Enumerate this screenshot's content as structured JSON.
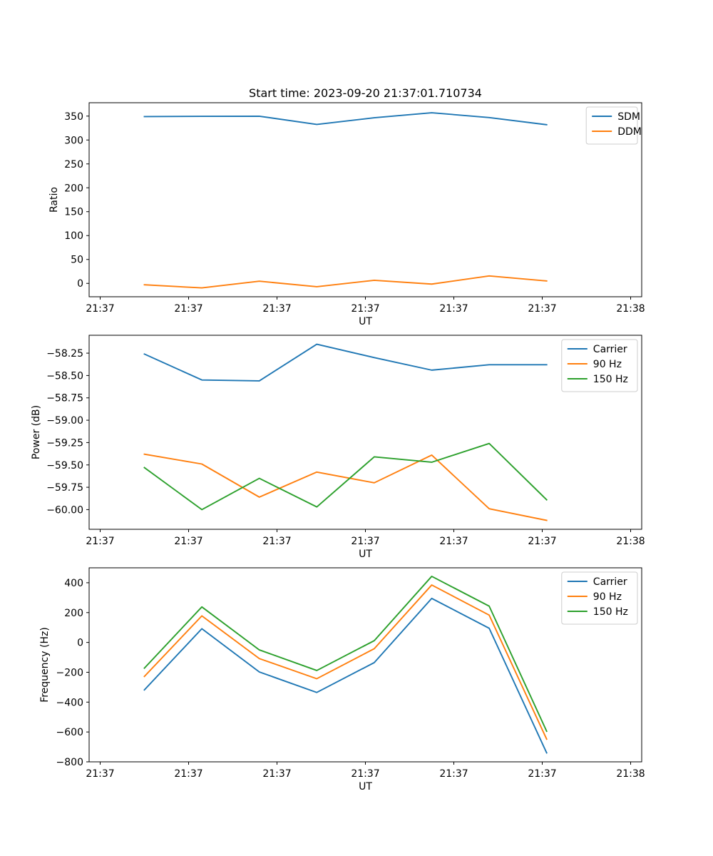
{
  "figure": {
    "title": "Start time: 2023-09-20 21:37:01.710734"
  },
  "chart_data": [
    {
      "type": "line",
      "title": "Start time: 2023-09-20 21:37:01.710734",
      "xlabel": "UT",
      "ylabel": "Ratio",
      "x": [
        0.5,
        1.15,
        1.8,
        2.45,
        3.1,
        3.75,
        4.4,
        5.05
      ],
      "xlim": [
        0,
        6
      ],
      "x_ticks": [
        0,
        1,
        2,
        3,
        4,
        5,
        6
      ],
      "x_tick_labels": [
        "21:37",
        "21:37",
        "21:37",
        "21:37",
        "21:37",
        "21:37",
        "21:38"
      ],
      "ylim": [
        -28,
        378
      ],
      "y_ticks": [
        0,
        50,
        100,
        150,
        200,
        250,
        300,
        350
      ],
      "y_tick_labels": [
        "0",
        "50",
        "100",
        "150",
        "200",
        "250",
        "300",
        "350"
      ],
      "legend_position": "top-right",
      "series": [
        {
          "name": "SDM",
          "color": "#1f77b4",
          "values": [
            349,
            349.5,
            349.8,
            332.5,
            346.5,
            357,
            347,
            332
          ]
        },
        {
          "name": "DDM",
          "color": "#ff7f0e",
          "values": [
            -3,
            -9.5,
            4.5,
            -7,
            6.5,
            -1.5,
            15.5,
            5
          ]
        }
      ]
    },
    {
      "type": "line",
      "title": "",
      "xlabel": "UT",
      "ylabel": "Power (dB)",
      "x": [
        0.5,
        1.15,
        1.8,
        2.45,
        3.1,
        3.75,
        4.4,
        5.05
      ],
      "xlim": [
        0,
        6
      ],
      "x_ticks": [
        0,
        1,
        2,
        3,
        4,
        5,
        6
      ],
      "x_tick_labels": [
        "21:37",
        "21:37",
        "21:37",
        "21:37",
        "21:37",
        "21:37",
        "21:38"
      ],
      "ylim": [
        -60.22,
        -58.05
      ],
      "y_ticks": [
        -60.0,
        -59.75,
        -59.5,
        -59.25,
        -59.0,
        -58.75,
        -58.5,
        -58.25
      ],
      "y_tick_labels": [
        "−60.00",
        "−59.75",
        "−59.50",
        "−59.25",
        "−59.00",
        "−58.75",
        "−58.50",
        "−58.25"
      ],
      "legend_position": "top-right",
      "series": [
        {
          "name": "Carrier",
          "color": "#1f77b4",
          "values": [
            -58.26,
            -58.55,
            -58.56,
            -58.15,
            -58.3,
            -58.44,
            -58.38,
            -58.38
          ]
        },
        {
          "name": "90 Hz",
          "color": "#ff7f0e",
          "values": [
            -59.38,
            -59.49,
            -59.86,
            -59.58,
            -59.7,
            -59.39,
            -59.99,
            -60.12
          ]
        },
        {
          "name": "150 Hz",
          "color": "#2ca02c",
          "values": [
            -59.53,
            -60.0,
            -59.65,
            -59.97,
            -59.41,
            -59.47,
            -59.26,
            -59.89
          ]
        }
      ]
    },
    {
      "type": "line",
      "title": "",
      "xlabel": "UT",
      "ylabel": "Frequency (Hz)",
      "x": [
        0.5,
        1.15,
        1.8,
        2.45,
        3.1,
        3.75,
        4.4,
        5.05
      ],
      "xlim": [
        0,
        6
      ],
      "x_ticks": [
        0,
        1,
        2,
        3,
        4,
        5,
        6
      ],
      "x_tick_labels": [
        "21:37",
        "21:37",
        "21:37",
        "21:37",
        "21:37",
        "21:37",
        "21:38"
      ],
      "ylim": [
        -800,
        500
      ],
      "y_ticks": [
        -800,
        -600,
        -400,
        -200,
        0,
        200,
        400
      ],
      "y_tick_labels": [
        "−800",
        "−600",
        "−400",
        "−200",
        "0",
        "200",
        "400"
      ],
      "legend_position": "top-right",
      "series": [
        {
          "name": "Carrier",
          "color": "#1f77b4",
          "values": [
            -318,
            92,
            -198,
            -335,
            -135,
            295,
            95,
            -740
          ]
        },
        {
          "name": "90 Hz",
          "color": "#ff7f0e",
          "values": [
            -228,
            178,
            -108,
            -243,
            -42,
            385,
            183,
            -648
          ]
        },
        {
          "name": "150 Hz",
          "color": "#2ca02c",
          "values": [
            -172,
            238,
            -50,
            -188,
            12,
            443,
            243,
            -595
          ]
        }
      ]
    }
  ]
}
